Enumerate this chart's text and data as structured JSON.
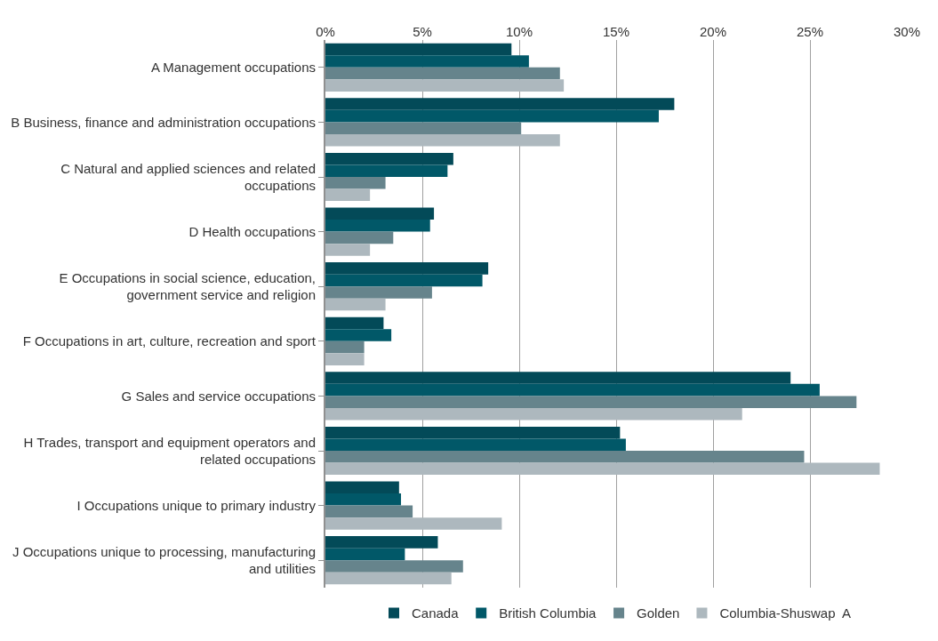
{
  "chart_data": {
    "type": "bar",
    "orientation": "horizontal",
    "categories": [
      "A Management occupations",
      "B Business, finance and administration occupations",
      "C Natural and applied sciences and related occupations",
      "D Health occupations",
      "E Occupations in social science, education, government service and religion",
      "F Occupations in art, culture, recreation and sport",
      "G Sales and service occupations",
      "H Trades, transport and equipment operators and related occupations",
      "I Occupations unique to primary industry",
      "J Occupations unique to processing, manufacturing and utilities"
    ],
    "series": [
      {
        "name": "Canada",
        "color": "#034a58",
        "values": [
          9.6,
          18.0,
          6.6,
          5.6,
          8.4,
          3.0,
          24.0,
          15.2,
          3.8,
          5.8
        ]
      },
      {
        "name": "British Columbia",
        "color": "#015868",
        "values": [
          10.5,
          17.2,
          6.3,
          5.4,
          8.1,
          3.4,
          25.5,
          15.5,
          3.9,
          4.1
        ]
      },
      {
        "name": "Golden",
        "color": "#66848c",
        "values": [
          12.1,
          10.1,
          3.1,
          3.5,
          5.5,
          2.0,
          27.4,
          24.7,
          4.5,
          7.1
        ]
      },
      {
        "name": "Columbia-Shuswap  A",
        "color": "#adb8be",
        "values": [
          12.3,
          12.1,
          2.3,
          2.3,
          3.1,
          2.0,
          21.5,
          28.6,
          9.1,
          6.5
        ]
      }
    ],
    "xlim": [
      0,
      30
    ],
    "xticks": [
      {
        "value": 0,
        "label": "0%"
      },
      {
        "value": 5,
        "label": "5%"
      },
      {
        "value": 10,
        "label": "10%"
      },
      {
        "value": 15,
        "label": "15%"
      },
      {
        "value": 20,
        "label": "20%"
      },
      {
        "value": 25,
        "label": "25%"
      },
      {
        "value": 30,
        "label": "30%"
      }
    ],
    "grid": "x",
    "legend": "bottom"
  }
}
